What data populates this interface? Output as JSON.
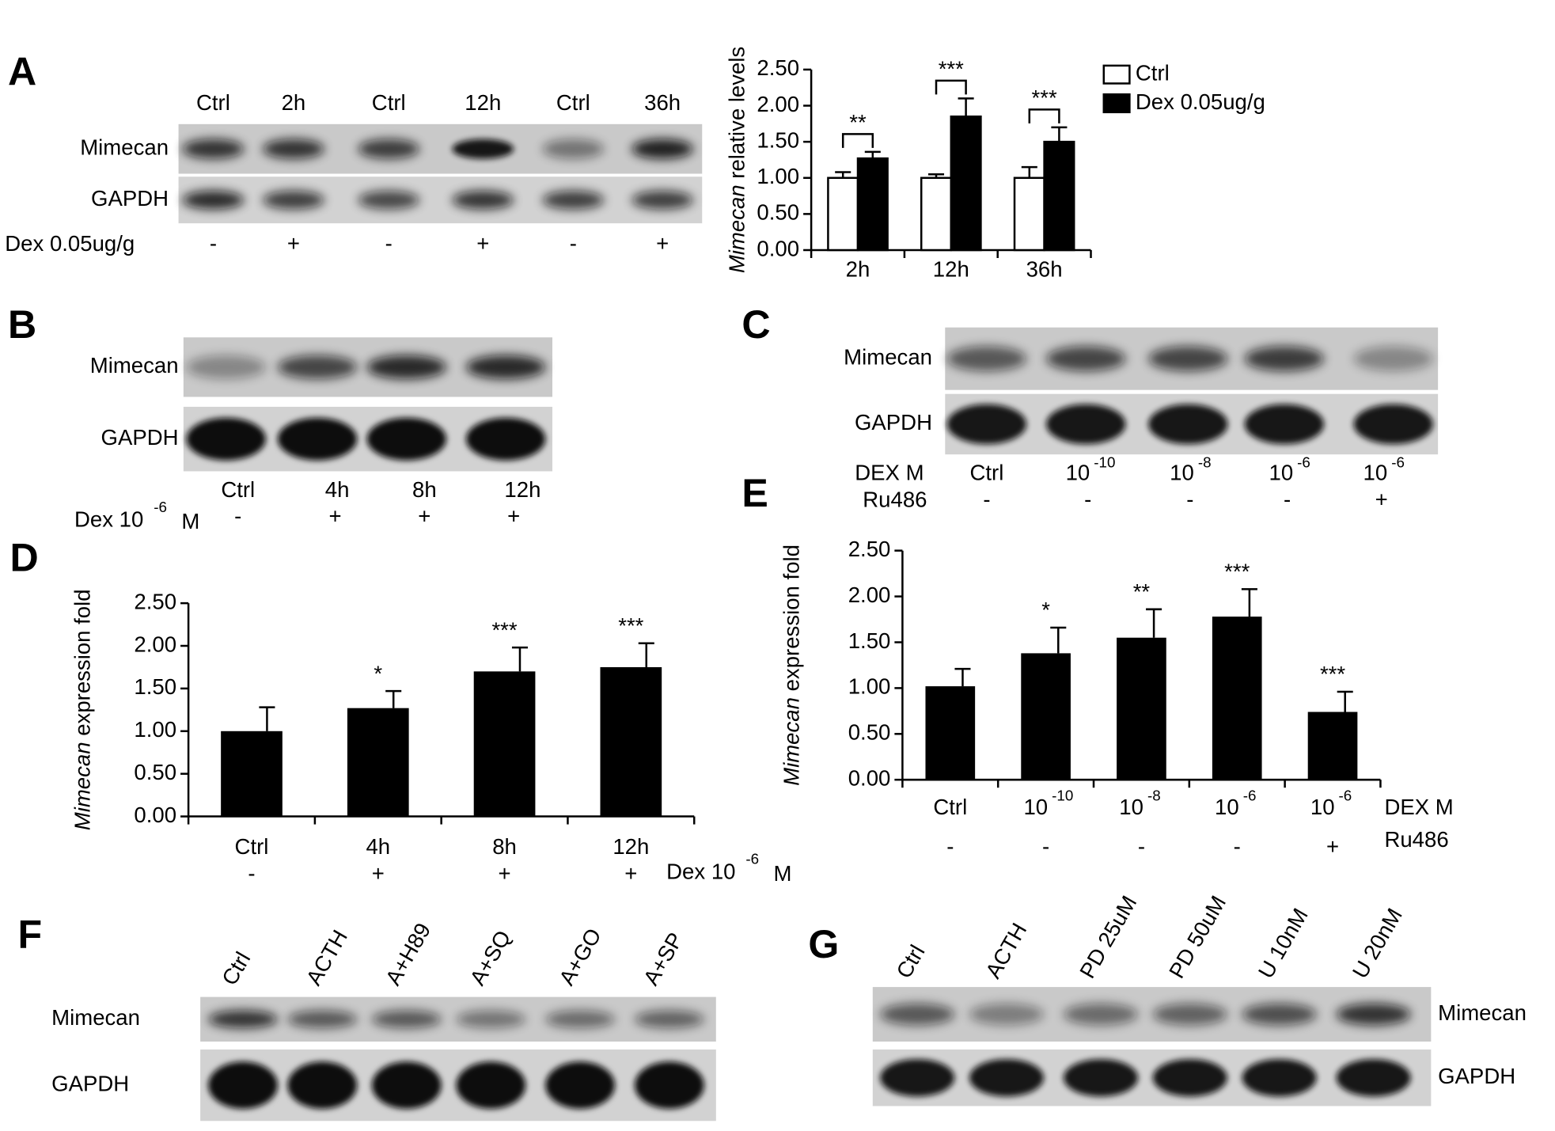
{
  "chart_data": [
    {
      "type": "bar",
      "panel": "A",
      "ylabel_gene": "Mimecan",
      "ylabel": "relative levels",
      "categories": [
        "2h",
        "12h",
        "36h"
      ],
      "series": [
        {
          "name": "Ctrl",
          "color": "#ffffff",
          "values": [
            1.0,
            1.0,
            1.0
          ],
          "errors": [
            0.08,
            0.05,
            0.15
          ]
        },
        {
          "name": "Dex 0.05ug/g",
          "color": "#000000",
          "values": [
            1.27,
            1.85,
            1.5
          ],
          "errors": [
            0.09,
            0.25,
            0.2
          ]
        }
      ],
      "annotations": [
        "**",
        "***",
        "***"
      ],
      "ylim": [
        0,
        2.5
      ],
      "yticks": [
        {
          "value": 0,
          "label": "0.00"
        },
        {
          "value": 0.5,
          "label": "0.50"
        },
        {
          "value": 1,
          "label": "1.00"
        },
        {
          "value": 1.5,
          "label": "1.50"
        },
        {
          "value": 2,
          "label": "2.00"
        },
        {
          "value": 2.5,
          "label": "2.50"
        }
      ],
      "legend": "top-right"
    },
    {
      "type": "bar",
      "panel": "D",
      "ylabel_gene": "Mimecan",
      "ylabel": "expression fold",
      "categories": [
        "Ctrl",
        "4h",
        "8h",
        "12h"
      ],
      "signs": [
        "-",
        "+",
        "+",
        "+"
      ],
      "condition": "Dex 10",
      "condition_exponent": "-6",
      "condition_unit": "M",
      "color": "#000000",
      "values": [
        1.0,
        1.27,
        1.7,
        1.75
      ],
      "errors": [
        0.28,
        0.2,
        0.28,
        0.28
      ],
      "annotations": [
        null,
        "*",
        "***",
        "***"
      ],
      "ylim": [
        0,
        2.5
      ],
      "yticks": [
        {
          "value": 0,
          "label": "0.00"
        },
        {
          "value": 0.5,
          "label": "0.50"
        },
        {
          "value": 1,
          "label": "1.00"
        },
        {
          "value": 1.5,
          "label": "1.50"
        },
        {
          "value": 2,
          "label": "2.00"
        },
        {
          "value": 2.5,
          "label": "2.50"
        }
      ]
    },
    {
      "type": "bar",
      "panel": "E",
      "ylabel_gene": "Mimecan",
      "ylabel": "expression fold",
      "categories": [
        "Ctrl",
        "10",
        "10",
        "10",
        "10"
      ],
      "category_exponents": [
        null,
        "-10",
        "-8",
        "-6",
        "-6"
      ],
      "signs": [
        "-",
        "-",
        "-",
        "-",
        "+"
      ],
      "row_labels": [
        "DEX  M",
        "Ru486"
      ],
      "color": "#000000",
      "values": [
        1.02,
        1.38,
        1.55,
        1.78,
        0.74
      ],
      "errors": [
        0.19,
        0.28,
        0.31,
        0.3,
        0.22
      ],
      "annotations": [
        null,
        "*",
        "**",
        "***",
        "***"
      ],
      "ylim": [
        0,
        2.5
      ],
      "yticks": [
        {
          "value": 0,
          "label": "0.00"
        },
        {
          "value": 0.5,
          "label": "0.50"
        },
        {
          "value": 1,
          "label": "1.00"
        },
        {
          "value": 1.5,
          "label": "1.50"
        },
        {
          "value": 2,
          "label": "2.00"
        },
        {
          "value": 2.5,
          "label": "2.50"
        }
      ]
    }
  ],
  "blots": [
    {
      "panel": "A",
      "rows": [
        "Mimecan",
        "GAPDH"
      ],
      "lanes": [
        "Ctrl",
        "2h",
        "Ctrl",
        "12h",
        "Ctrl",
        "36h"
      ],
      "condition": "Dex 0.05ug/g",
      "signs": [
        "-",
        "+",
        "-",
        "+",
        "-",
        "+"
      ]
    },
    {
      "panel": "B",
      "rows": [
        "Mimecan",
        "GAPDH"
      ],
      "lanes": [
        "Ctrl",
        "4h",
        "8h",
        "12h"
      ],
      "condition": "Dex 10",
      "condition_exponent": "-6",
      "condition_unit": "M",
      "signs": [
        "-",
        "+",
        "+",
        "+"
      ]
    },
    {
      "panel": "C",
      "rows": [
        "Mimecan",
        "GAPDH"
      ],
      "treatment": "DEX  M",
      "lanes": [
        "Ctrl",
        "10",
        "10",
        "10",
        "10"
      ],
      "lane_exponents": [
        null,
        "-10",
        "-8",
        "-6",
        "-6"
      ],
      "condition": "Ru486",
      "signs": [
        "-",
        "-",
        "-",
        "-",
        "+"
      ]
    },
    {
      "panel": "F",
      "rows": [
        "Mimecan",
        "GAPDH"
      ],
      "lanes": [
        "Ctrl",
        "ACTH",
        "A+H89",
        "A+SQ",
        "A+GO",
        "A+SP"
      ]
    },
    {
      "panel": "G",
      "rows": [
        "Mimecan",
        "GAPDH"
      ],
      "lanes": [
        "Ctrl",
        "ACTH",
        "PD 25uM",
        "PD 50uM",
        "U 10nM",
        "U 20nM"
      ]
    }
  ]
}
